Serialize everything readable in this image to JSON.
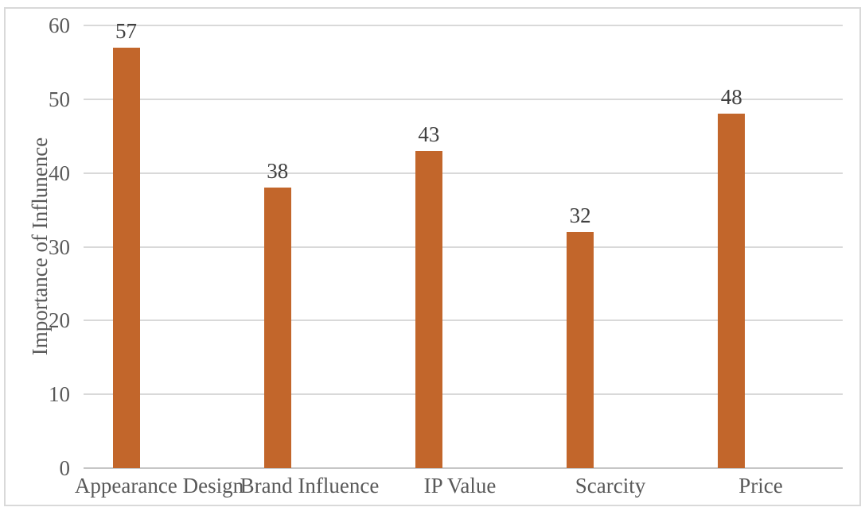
{
  "figure": {
    "background": "#FFFFFF",
    "border_color": "#D9D9D9"
  },
  "chart_data": {
    "type": "bar",
    "title": "",
    "categories": [
      "Appearance Design",
      "Brand Influence",
      "IP Value",
      "Scarcity",
      "Price"
    ],
    "values": [
      57,
      38,
      43,
      32,
      48
    ],
    "data_labels": [
      "57",
      "38",
      "43",
      "32",
      "48"
    ],
    "xlabel": "",
    "ylabel": "Importance of Influnence",
    "ylim": [
      0,
      60
    ],
    "yticks": [
      0,
      10,
      20,
      30,
      40,
      50,
      60
    ],
    "grid": true,
    "legend": false,
    "bar_color": "#C2662B",
    "gridline_color": "#D9D9D9",
    "axis_line_color": "#C6C6C6",
    "tick_label_color": "#595959",
    "category_label_color": "#595959",
    "data_label_color": "#404040"
  }
}
